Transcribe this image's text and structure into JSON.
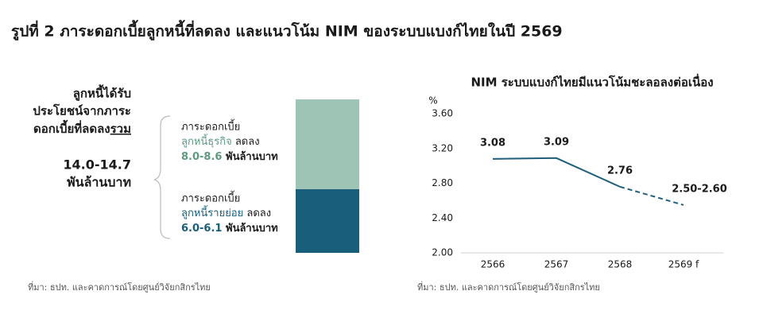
{
  "title": "รูปที่ 2  ภาระดอกเบี้ยลูกหนี้ที่ลดลง และแนวโน้ม NIM ของระบบแบงก์ไทยในปี 2569",
  "left_panel": {
    "heading_lines": [
      "ลูกหนี้ได้รับ",
      "ประโยชน์จากภาระ",
      "ดอกเบี้ยที่ลดลง"
    ],
    "heading_emphasis": "รวม",
    "total": "14.0-14.7",
    "total_unit": "พันล้านบาท",
    "segments": [
      {
        "line1": "ภาระดอกเบี้ย",
        "group": "ลูกหนี้ธุรกิจ",
        "change": " ลดลง",
        "amount": "8.0-8.6",
        "unit": " พันล้านบาท",
        "color": "#9dc4b4",
        "text_color": "#5e9a82"
      },
      {
        "line1": "ภาระดอกเบี้ย",
        "group": "ลูกหนี้รายย่อย",
        "change": " ลดลง",
        "amount": "6.0-6.1",
        "unit": "  พันล้านบาท",
        "color": "#195f7b",
        "text_color": "#195f7b"
      }
    ],
    "source": "ที่มา: ธปท. และคาดการณ์โดยศูนย์วิจัยกสิกรไทย"
  },
  "chart_data": {
    "type": "line",
    "title": "NIM ระบบแบงก์ไทยมีแนวโน้มชะลอลงต่อเนื่อง",
    "y_label": "%",
    "categories": [
      "2566",
      "2567",
      "2568",
      "2569 f"
    ],
    "values": [
      3.08,
      3.09,
      2.76,
      2.55
    ],
    "value_labels": [
      "3.08",
      "3.09",
      "2.76",
      "2.50-2.60"
    ],
    "color": "#1f5f7a",
    "ylim": [
      2.0,
      3.6
    ],
    "yticks": [
      {
        "value": 2.0,
        "label": "2.00"
      },
      {
        "value": 2.4,
        "label": "2.40"
      },
      {
        "value": 2.8,
        "label": "2.80"
      },
      {
        "value": 3.2,
        "label": "3.20"
      },
      {
        "value": 3.6,
        "label": "3.60"
      }
    ],
    "grid": false,
    "source": "ที่มา: ธปท. และคาดการณ์โดยศูนย์วิจัยกสิกรไทย"
  }
}
